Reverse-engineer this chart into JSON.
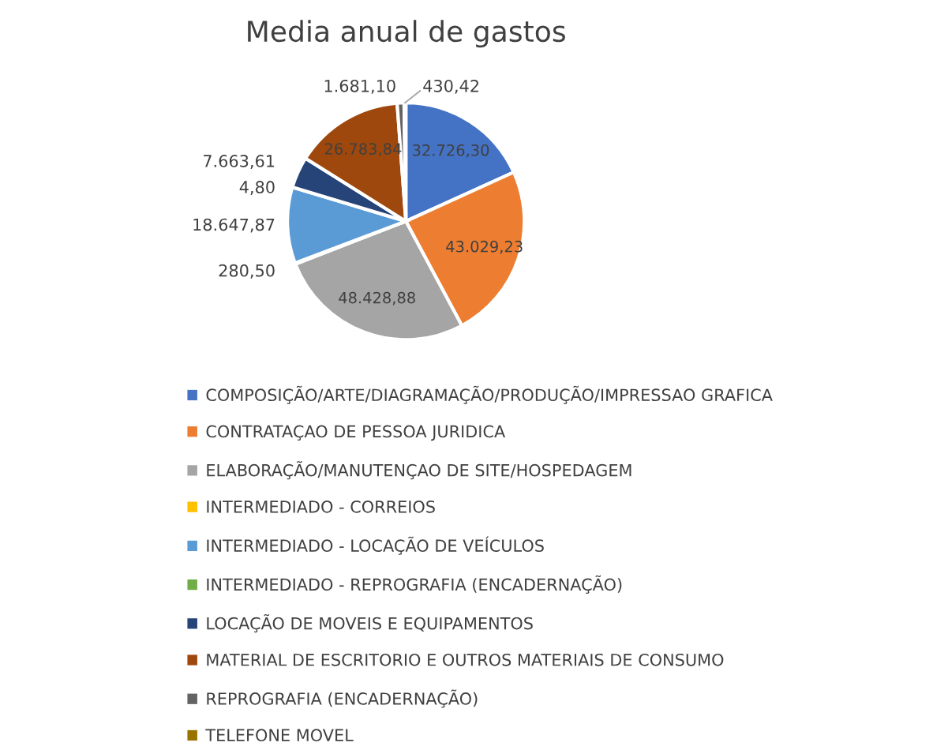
{
  "chart_data": {
    "type": "pie",
    "title": "Media anual de gastos",
    "categories": [
      "COMPOSIÇÃO/ARTE/DIAGRAMAÇÃO/PRODUÇÃO/IMPRESSAO GRAFICA",
      "CONTRATAÇAO DE PESSOA JURIDICA",
      "ELABORAÇÃO/MANUTENÇAO DE SITE/HOSPEDAGEM",
      "INTERMEDIADO - CORREIOS",
      "INTERMEDIADO - LOCAÇÃO DE VEÍCULOS",
      "INTERMEDIADO - REPROGRAFIA (ENCADERNAÇÃO)",
      "LOCAÇÃO DE MOVEIS E EQUIPAMENTOS",
      "MATERIAL DE ESCRITORIO E OUTROS MATERIAIS DE CONSUMO",
      "REPROGRAFIA (ENCADERNAÇÃO)",
      "TELEFONE MOVEL"
    ],
    "values": [
      32726.3,
      43029.23,
      48428.88,
      280.5,
      18647.87,
      4.8,
      7663.61,
      26783.84,
      1681.1,
      430.42
    ],
    "value_labels": [
      "32.726,30",
      "43.029,23",
      "48.428,88",
      "280,50",
      "18.647,87",
      "4,80",
      "7.663,61",
      "26.783,84",
      "1.681,10",
      "430,42"
    ],
    "colors": [
      "#4472c4",
      "#ed7d31",
      "#a5a5a5",
      "#ffc000",
      "#5b9bd5",
      "#70ad47",
      "#264478",
      "#9e480e",
      "#636363",
      "#997300"
    ],
    "legend": "bottom"
  }
}
